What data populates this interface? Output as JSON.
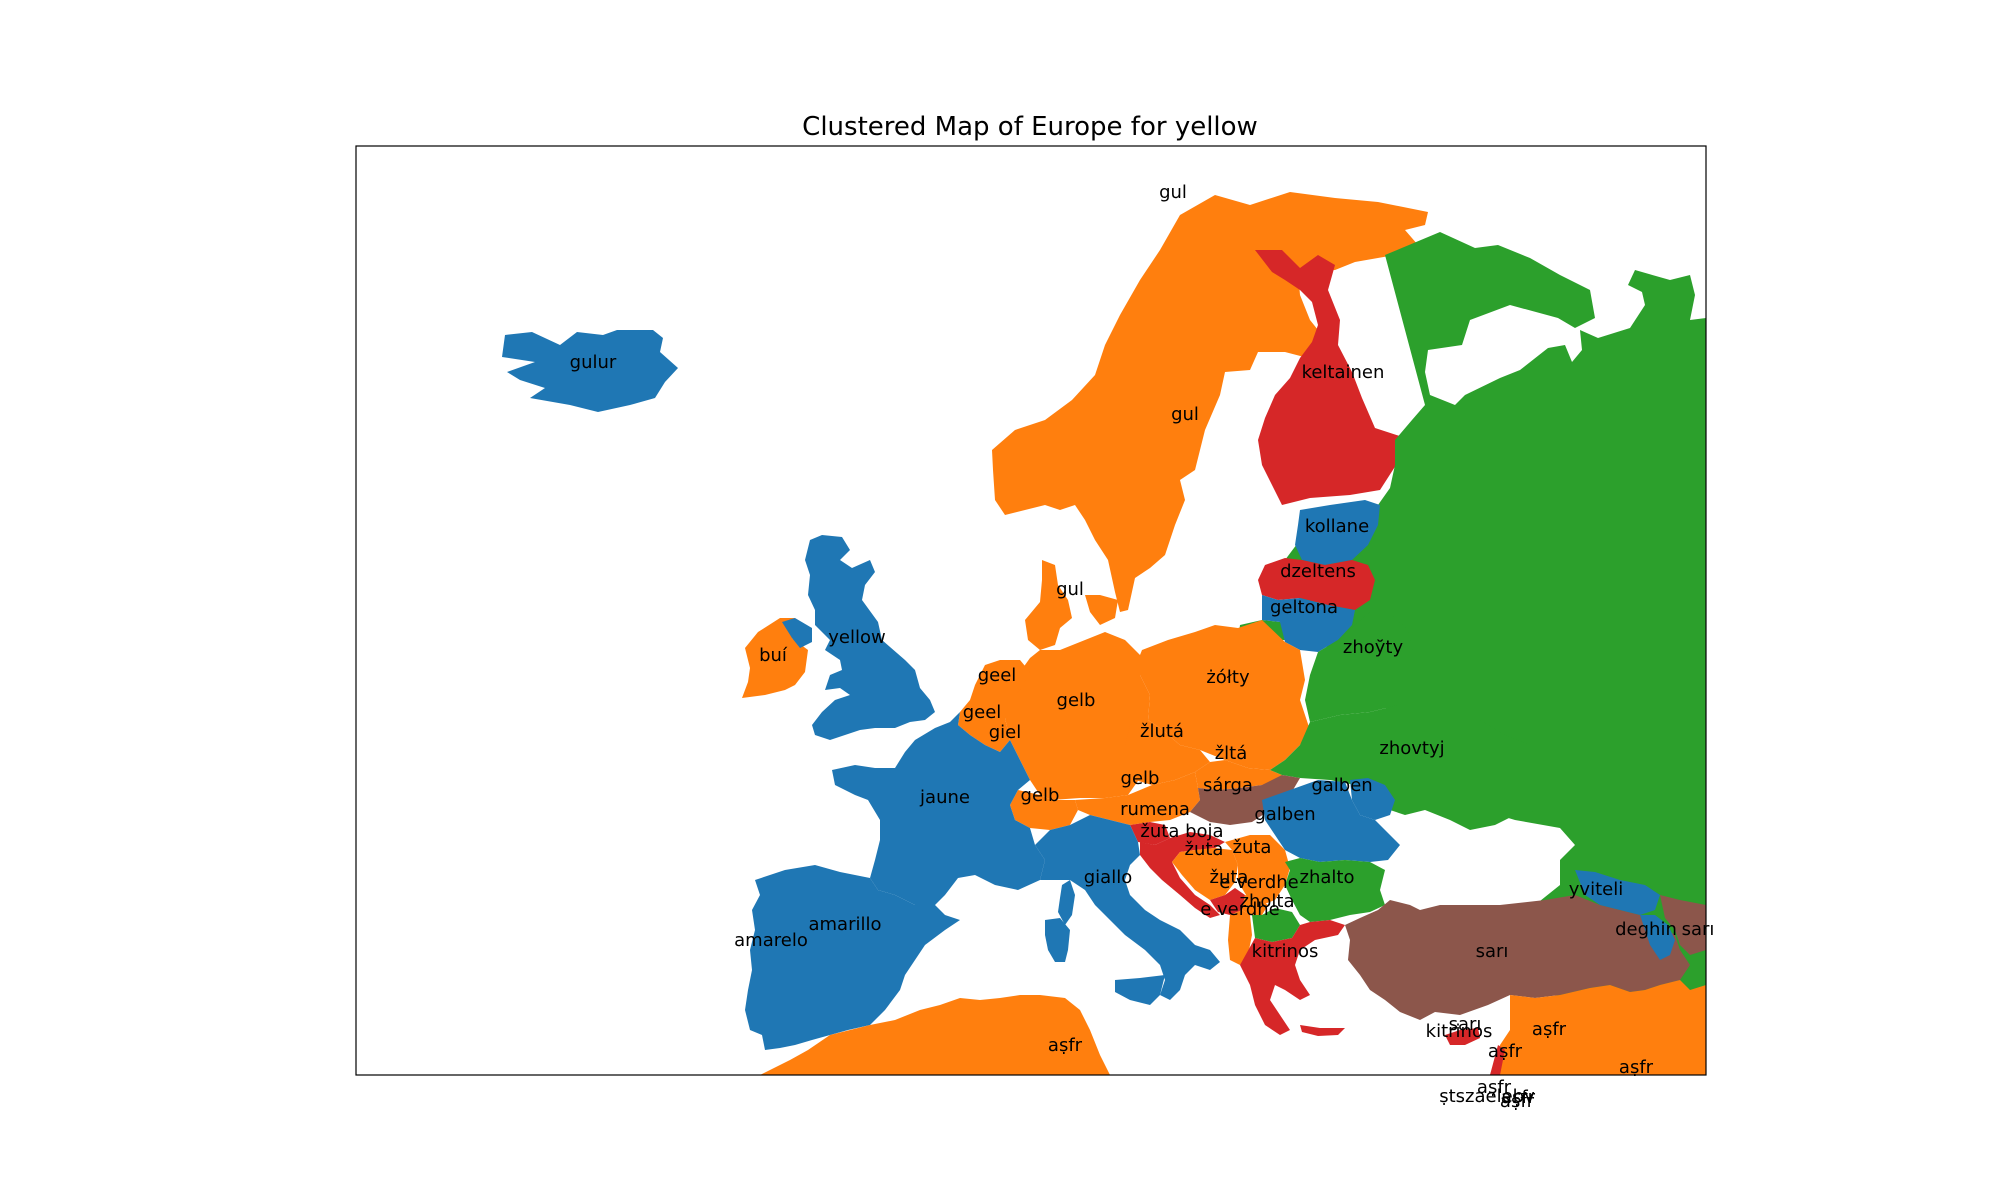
{
  "title": "Clustered Map of Europe for yellow",
  "colors": {
    "blue": "#1f77b4",
    "orange": "#ff7f0e",
    "green": "#2ca02c",
    "red": "#d62728",
    "brown": "#8c564b"
  },
  "labels": [
    {
      "key": "svalbard",
      "text": "gul"
    },
    {
      "key": "iceland",
      "text": "gulur"
    },
    {
      "key": "finland",
      "text": "keltainen"
    },
    {
      "key": "sweden",
      "text": "gul"
    },
    {
      "key": "estonia",
      "text": "kollane"
    },
    {
      "key": "latvia",
      "text": "dzeltens"
    },
    {
      "key": "lithuania",
      "text": "geltona"
    },
    {
      "key": "denmark",
      "text": "gul"
    },
    {
      "key": "belarus",
      "text": "zhoўty"
    },
    {
      "key": "ireland",
      "text": "buí"
    },
    {
      "key": "uk",
      "text": "yellow"
    },
    {
      "key": "netherlands",
      "text": "geel"
    },
    {
      "key": "belgium",
      "text": "geel"
    },
    {
      "key": "luxembourg",
      "text": "giel"
    },
    {
      "key": "germany",
      "text": "gelb"
    },
    {
      "key": "poland",
      "text": "żółty"
    },
    {
      "key": "czechia",
      "text": "žlutá"
    },
    {
      "key": "slovakia",
      "text": "žltá"
    },
    {
      "key": "ukraine",
      "text": "zhovtyj"
    },
    {
      "key": "austria",
      "text": "gelb"
    },
    {
      "key": "hungary",
      "text": "sárga"
    },
    {
      "key": "moldova",
      "text": "galben"
    },
    {
      "key": "romania",
      "text": "galben"
    },
    {
      "key": "switzerland",
      "text": "gelb"
    },
    {
      "key": "france",
      "text": "jaune"
    },
    {
      "key": "switzerland_rm",
      "text": "rumena"
    },
    {
      "key": "croatia",
      "text": "žuta boja"
    },
    {
      "key": "bosnia",
      "text": "žuta"
    },
    {
      "key": "serbia",
      "text": "žuta"
    },
    {
      "key": "montenegro",
      "text": "žuta"
    },
    {
      "key": "kosovo",
      "text": "e verdhe"
    },
    {
      "key": "albania",
      "text": "e verdhe"
    },
    {
      "key": "macedonia",
      "text": "zholta"
    },
    {
      "key": "bulgaria",
      "text": "zhalto"
    },
    {
      "key": "italy",
      "text": "giallo"
    },
    {
      "key": "spain",
      "text": "amarillo"
    },
    {
      "key": "portugal",
      "text": "amarelo"
    },
    {
      "key": "greece",
      "text": "kitrinos"
    },
    {
      "key": "turkey",
      "text": "sarı"
    },
    {
      "key": "georgia",
      "text": "yviteli"
    },
    {
      "key": "armenia",
      "text": "deghin"
    },
    {
      "key": "azerbaijan",
      "text": "sarı"
    },
    {
      "key": "cyprus_tr",
      "text": "sarı"
    },
    {
      "key": "cyprus",
      "text": "kitrinos"
    },
    {
      "key": "syria",
      "text": "aṣfr"
    },
    {
      "key": "lebanon",
      "text": "aṣfr"
    },
    {
      "key": "iraq",
      "text": "aṣfr"
    },
    {
      "key": "israel",
      "text": "aṣfr"
    },
    {
      "key": "tunisia",
      "text": "aṣfr"
    },
    {
      "key": "jordan",
      "text": "aṣfr"
    },
    {
      "key": "palestine",
      "text": "ṣtszaelebv"
    },
    {
      "key": "egypt",
      "text": "aṣfr"
    }
  ]
}
